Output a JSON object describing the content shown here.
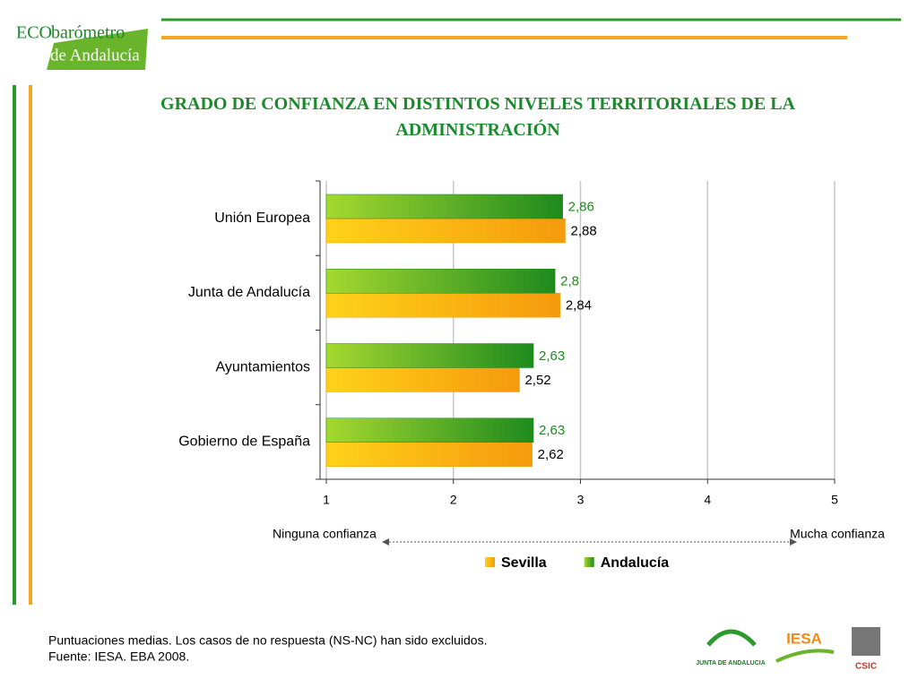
{
  "logo": {
    "eco": "ECO",
    "barometro": "barómetro",
    "region": "de Andalucía"
  },
  "chart_data": {
    "type": "bar",
    "orientation": "horizontal",
    "title": "GRADO DE CONFIANZA EN DISTINTOS NIVELES TERRITORIALES DE LA ADMINISTRACIÓN",
    "categories": [
      "Unión Europea",
      "Junta de Andalucía",
      "Ayuntamientos",
      "Gobierno de España"
    ],
    "series": [
      {
        "name": "Sevilla",
        "color": "#f59a0c",
        "values": [
          2.88,
          2.84,
          2.52,
          2.62
        ],
        "value_labels": [
          "2,88",
          "2,84",
          "2,52",
          "2,62"
        ]
      },
      {
        "name": "Andalucía",
        "color": "#1e8a1e",
        "values": [
          2.86,
          2.8,
          2.63,
          2.63
        ],
        "value_labels": [
          "2,86",
          "2,8",
          "2,63",
          "2,63"
        ]
      }
    ],
    "xlim": [
      1,
      5
    ],
    "xticks": [
      1,
      2,
      3,
      4,
      5
    ],
    "grid": true,
    "legend": "bottom",
    "annotations": [
      "Ninguna confianza",
      "Mucha confianza"
    ]
  },
  "notes": [
    "Puntuaciones medias. Los casos de no respuesta (NS-NC) han sido excluidos.",
    "Fuente: IESA. EBA 2008."
  ],
  "footer_logos": [
    "JUNTA DE ANDALUCIA",
    "IESA",
    "CSIC"
  ]
}
